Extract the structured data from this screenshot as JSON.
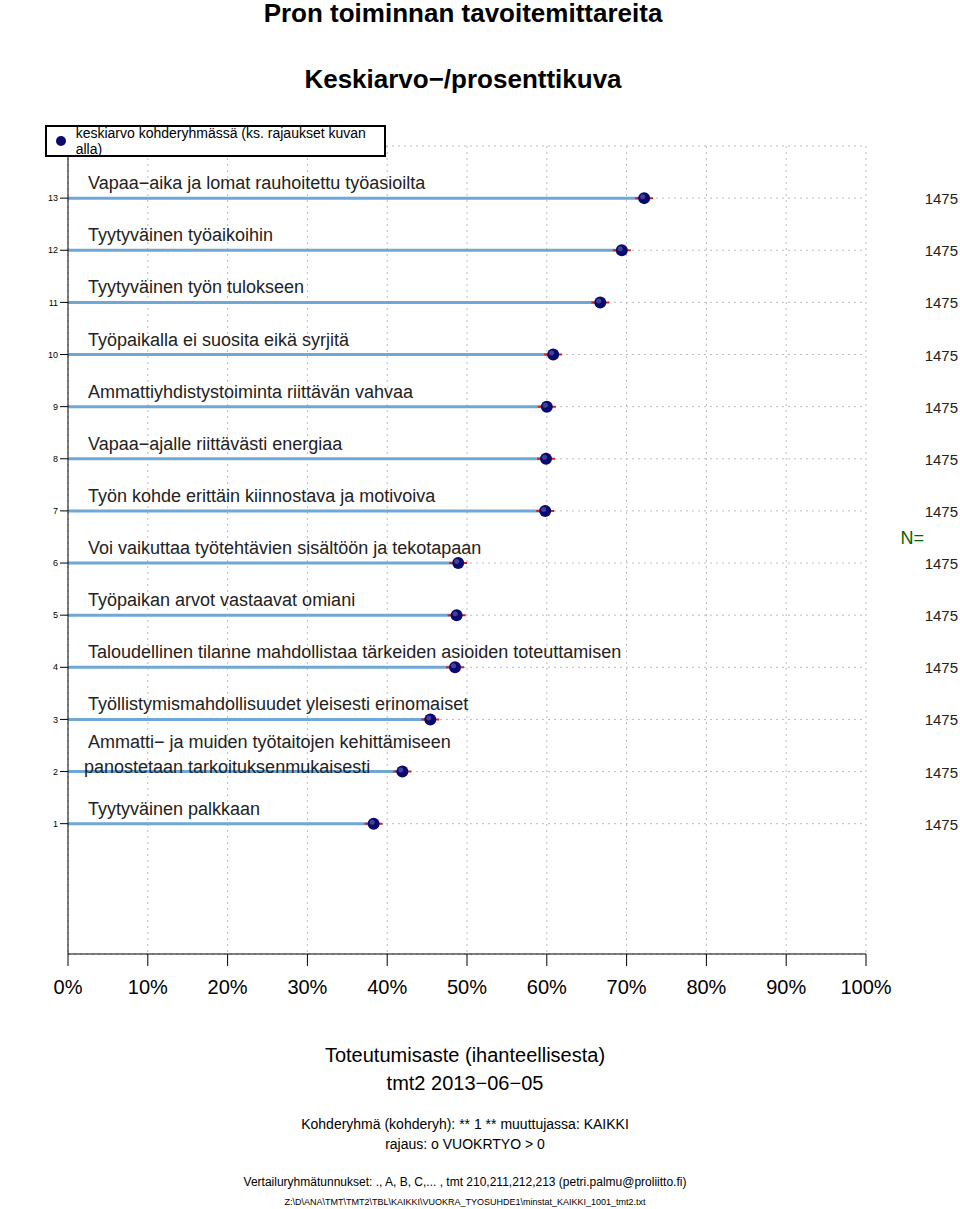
{
  "chart_data": {
    "type": "lollipop",
    "title": "Pron toiminnan tavoitemittareita",
    "subtitle": "Keskiarvo−/prosenttikuva",
    "xlabel": "Toteutumisaste (ihanteellisesta)",
    "annotations": [
      "tmt2 2013−06−05",
      "Kohderyhmä (kohderyh): ** 1 ** muuttujassa: KAIKKI",
      "rajaus: o VUOKRTYO > 0",
      "Vertailuryhmätunnukset: ., A, B, C,... , tmt 210,211,212,213 (petri.palmu@proliitto.fi)",
      "Z:\\D\\ANA\\TMT\\TMT2\\TBL\\KAIKKI\\VUOKRA_TYOSUHDE1\\minstat_KAIKKI_1001_tmt2.txt"
    ],
    "categories": [
      "Tyytyväinen palkkaan",
      "Ammatti− ja muiden työtaitojen kehittämiseen\npanostetaan tarkoituksenmukaisesti",
      "Työllistymismahdollisuudet yleisesti erinomaiset",
      "Taloudellinen tilanne mahdollistaa tärkeiden asioiden toteuttamisen",
      "Työpaikan arvot vastaavat omiani",
      "Voi vaikuttaa työtehtävien sisältöön ja tekotapaan",
      "Työn kohde erittäin kiinnostava ja motivoiva",
      "Vapaa−ajalle riittävästi energiaa",
      "Ammattiyhdistystoiminta riittävän vahvaa",
      "Työpaikalla ei suosita eikä syrjitä",
      "Tyytyväinen työn tulokseen",
      "Tyytyväinen työaikoihin",
      "Vapaa−aika ja lomat rauhoitettu työasioilta"
    ],
    "series": [
      {
        "name": "keskiarvo kohderyhmässä (ks. rajaukset kuvan alla)",
        "color": "#0a0a6e",
        "values": [
          38.3,
          41.9,
          45.4,
          48.5,
          48.7,
          48.9,
          59.8,
          59.9,
          60.0,
          60.8,
          66.7,
          69.4,
          72.2
        ]
      }
    ],
    "n_label": "N=",
    "n": [
      1475,
      1475,
      1475,
      1475,
      1475,
      1475,
      1475,
      1475,
      1475,
      1475,
      1475,
      1475,
      1475
    ],
    "orientation": "horizontal",
    "legend": "top-left",
    "grid": true,
    "xlim": [
      0,
      100
    ],
    "xticks": [
      {
        "value": 0,
        "label": "0%"
      },
      {
        "value": 10,
        "label": "10%"
      },
      {
        "value": 20,
        "label": "20%"
      },
      {
        "value": 30,
        "label": "30%"
      },
      {
        "value": 40,
        "label": "40%"
      },
      {
        "value": 50,
        "label": "50%"
      },
      {
        "value": 60,
        "label": "60%"
      },
      {
        "value": 70,
        "label": "70%"
      },
      {
        "value": 80,
        "label": "80%"
      },
      {
        "value": 90,
        "label": "90%"
      },
      {
        "value": 100,
        "label": "100%"
      }
    ],
    "ylim": [
      -1.5,
      14
    ],
    "yticks": [
      1,
      2,
      3,
      4,
      5,
      6,
      7,
      8,
      9,
      10,
      11,
      12,
      13
    ]
  }
}
